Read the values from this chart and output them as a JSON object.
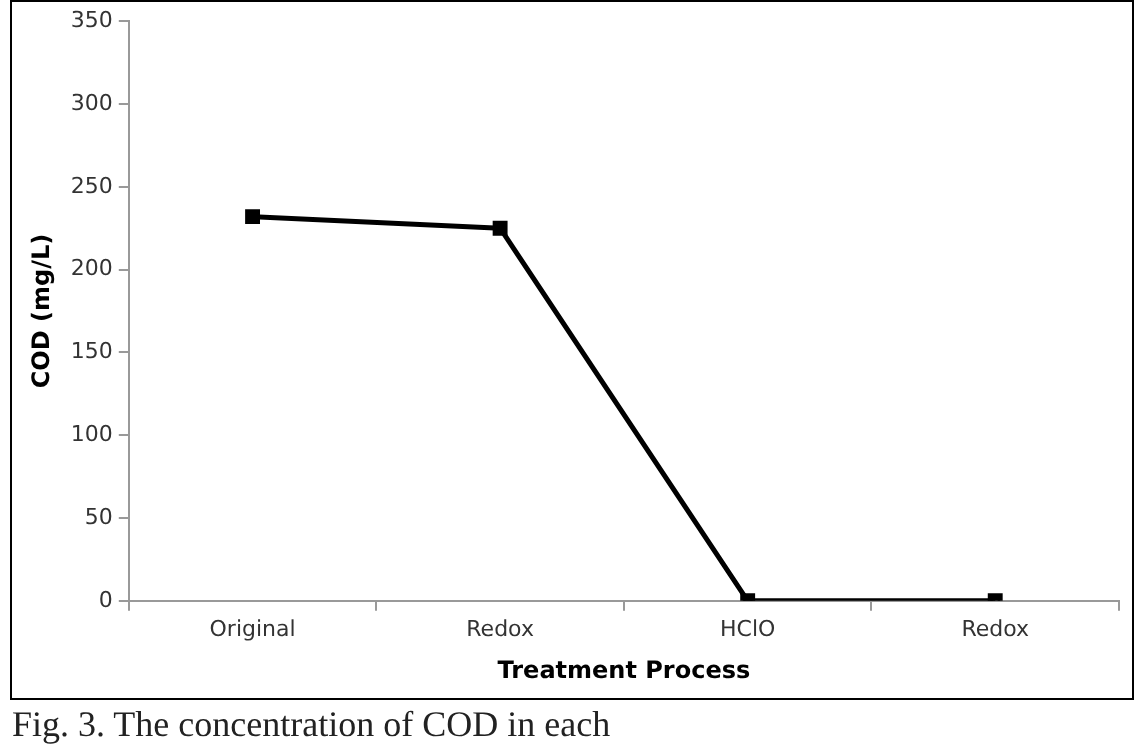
{
  "chart_data": {
    "type": "line",
    "xlabel": "Treatment Process",
    "ylabel": "COD (mg/L)",
    "categories": [
      "Original",
      "Redox",
      "HClO",
      "Redox"
    ],
    "series": [
      {
        "color": "#000000",
        "values": [
          232,
          225,
          0,
          0
        ]
      }
    ],
    "ylim": [
      0,
      350
    ],
    "yticks": [
      0,
      50,
      100,
      150,
      200,
      250,
      300,
      350
    ],
    "grid": false,
    "legend": false,
    "marker": "square",
    "line_style": "solid",
    "annotations": [
      "Fig. 3. The concentration of COD in each"
    ]
  }
}
